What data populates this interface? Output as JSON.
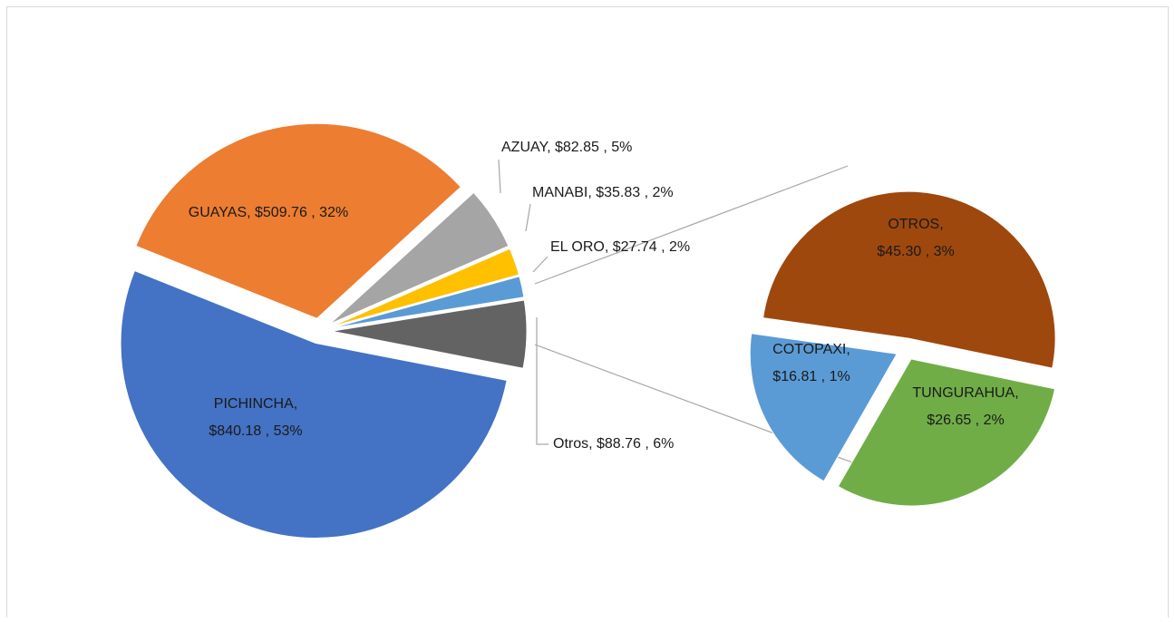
{
  "chart_data": [
    {
      "type": "pie",
      "values": [
        840.18,
        509.76,
        82.85,
        35.83,
        27.74,
        88.76
      ],
      "value_labels": [
        [
          "PICHINCHA,",
          "$840.18 , 53%"
        ],
        [
          "GUAYAS,  $509.76 , 32%"
        ],
        [
          "AZUAY,  $82.85 , 5%"
        ],
        [
          "MANABI,  $35.83 , 2%"
        ],
        [
          "EL ORO,  $27.74 , 2%"
        ],
        [
          "Otros,  $88.76 , 6%"
        ]
      ],
      "colors": [
        "#4472c4",
        "#ed7d31",
        "#a5a5a5",
        "#ffc000",
        "#5b9bd5",
        "#636363"
      ]
    },
    {
      "type": "pie",
      "values": [
        45.3,
        26.65,
        16.81
      ],
      "value_labels": [
        [
          "OTROS,",
          "$45.30 , 3%"
        ],
        [
          "TUNGURAHUA,",
          "$26.65 , 2%"
        ],
        [
          "COTOPAXI,",
          "$16.81 , 1%"
        ]
      ],
      "colors": [
        "#9e480e",
        "#70ad47",
        "#5b9bd5"
      ]
    }
  ]
}
